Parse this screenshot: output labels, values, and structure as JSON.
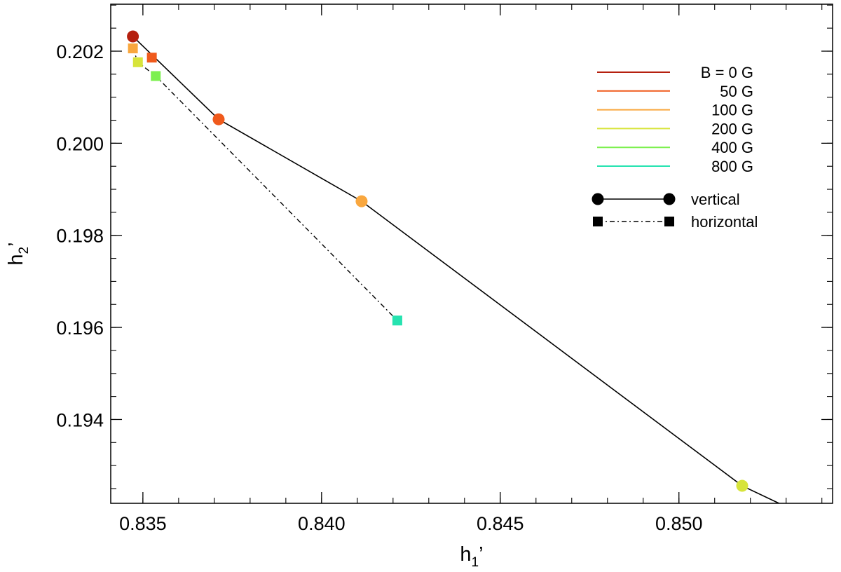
{
  "chart_data": {
    "type": "scatter",
    "title": "",
    "xlabel": "h1'",
    "xlabel_parts": {
      "base": "h",
      "sub": "1",
      "prime": "’"
    },
    "ylabel": "h2'",
    "ylabel_parts": {
      "base": "h",
      "sub": "2",
      "prime": "’"
    },
    "xlim": [
      0.8341,
      0.8543
    ],
    "ylim": [
      0.19218,
      0.20302
    ],
    "x_ticks": [
      0.835,
      0.84,
      0.845,
      0.85
    ],
    "x_tick_labels": [
      "0.835",
      "0.840",
      "0.845",
      "0.850"
    ],
    "x_minor_step": 0.001,
    "y_ticks": [
      0.194,
      0.196,
      0.198,
      0.2,
      0.202
    ],
    "y_tick_labels": [
      "0.194",
      "0.196",
      "0.198",
      "0.200",
      "0.202"
    ],
    "y_minor_step": 0.0005,
    "grid": false,
    "legend_position": "top-right",
    "field_legend": [
      {
        "label": "B =  0 G",
        "color": "#b5200f"
      },
      {
        "label": "50 G",
        "color": "#f05a1c"
      },
      {
        "label": "100 G",
        "color": "#f9a73e"
      },
      {
        "label": "200 G",
        "color": "#d7e43a"
      },
      {
        "label": "400 G",
        "color": "#7cf04f"
      },
      {
        "label": "800 G",
        "color": "#26e3b0"
      }
    ],
    "series": [
      {
        "name": "vertical",
        "marker": "circle",
        "line": "solid",
        "points": [
          {
            "x": 0.83472,
            "y": 0.20232,
            "color": "#b5200f"
          },
          {
            "x": 0.83712,
            "y": 0.20052,
            "color": "#f05a1c"
          },
          {
            "x": 0.84112,
            "y": 0.19874,
            "color": "#f9a73e"
          },
          {
            "x": 0.85177,
            "y": 0.19256,
            "color": "#d7e43a"
          }
        ],
        "tail_to": {
          "x": 0.8528,
          "y": 0.19218
        }
      },
      {
        "name": "horizontal",
        "marker": "square",
        "line": "dash-dot",
        "points": [
          {
            "x": 0.83472,
            "y": 0.20206,
            "color": "#f9a73e"
          },
          {
            "x": 0.83525,
            "y": 0.20186,
            "color": "#f05a1c"
          },
          {
            "x": 0.83486,
            "y": 0.20176,
            "color": "#d7e43a"
          },
          {
            "x": 0.83536,
            "y": 0.20146,
            "color": "#7cf04f"
          },
          {
            "x": 0.84212,
            "y": 0.19615,
            "color": "#26e3b0"
          }
        ],
        "line_order": [
          0,
          2,
          3,
          4
        ]
      }
    ]
  }
}
